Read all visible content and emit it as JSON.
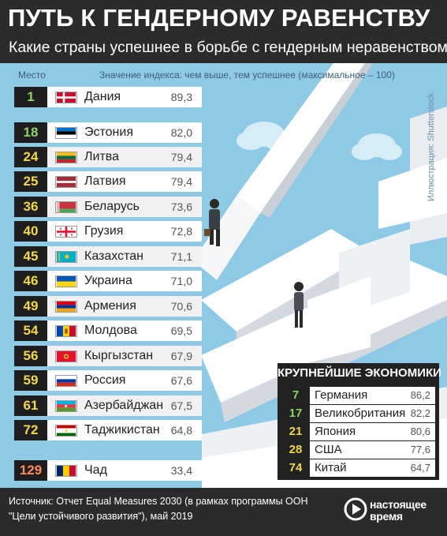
{
  "header": {
    "title": "ПУТЬ К ГЕНДЕРНОМУ РАВЕНСТВУ",
    "subtitle": "Какие страны успешнее в борьбе с гендерным неравенством"
  },
  "columns": {
    "rank_label": "Место",
    "value_label": "Значение индекса: чем выше, тем успешнее (максимальное – 100)"
  },
  "credit": "Иллюстрация: Shutterstock",
  "chart_data": {
    "type": "table",
    "rows": [
      {
        "rank": "1",
        "country": "Дания",
        "value": "89,3",
        "flag": "denmark"
      },
      {
        "rank": "18",
        "country": "Эстония",
        "value": "82,0",
        "flag": "estonia"
      },
      {
        "rank": "24",
        "country": "Литва",
        "value": "79,4",
        "flag": "lithuania"
      },
      {
        "rank": "25",
        "country": "Латвия",
        "value": "79,4",
        "flag": "latvia"
      },
      {
        "rank": "36",
        "country": "Беларусь",
        "value": "73,6",
        "flag": "belarus"
      },
      {
        "rank": "40",
        "country": "Грузия",
        "value": "72,8",
        "flag": "georgia"
      },
      {
        "rank": "45",
        "country": "Казахстан",
        "value": "71,1",
        "flag": "kazakhstan"
      },
      {
        "rank": "46",
        "country": "Украина",
        "value": "71,0",
        "flag": "ukraine"
      },
      {
        "rank": "49",
        "country": "Армения",
        "value": "70,6",
        "flag": "armenia"
      },
      {
        "rank": "54",
        "country": "Молдова",
        "value": "69,5",
        "flag": "moldova"
      },
      {
        "rank": "56",
        "country": "Кыргызстан",
        "value": "67,9",
        "flag": "kyrgyzstan"
      },
      {
        "rank": "59",
        "country": "Россия",
        "value": "67,6",
        "flag": "russia"
      },
      {
        "rank": "61",
        "country": "Азербайджан",
        "value": "67,5",
        "flag": "azerbaijan"
      },
      {
        "rank": "72",
        "country": "Таджикистан",
        "value": "64,8",
        "flag": "tajikistan"
      },
      {
        "rank": "129",
        "country": "Чад",
        "value": "33,4",
        "flag": "chad"
      }
    ],
    "economies": {
      "title": "КРУПНЕЙШИЕ ЭКОНОМИКИ",
      "rows": [
        {
          "rank": "7",
          "country": "Германия",
          "value": "86,2"
        },
        {
          "rank": "17",
          "country": "Великобритания",
          "value": "82,2"
        },
        {
          "rank": "21",
          "country": "Япония",
          "value": "80,6"
        },
        {
          "rank": "28",
          "country": "США",
          "value": "77,6"
        },
        {
          "rank": "74",
          "country": "Китай",
          "value": "64,7"
        }
      ]
    }
  },
  "footer": {
    "source": "Источник: Отчет Equal Measures 2030 (в рамках программы ООН \"Цели устойчивого развития\"), май 2019",
    "logo_line1": "настоящее",
    "logo_line2": "время"
  },
  "colors": {
    "sky": "#8ec9e6",
    "dark": "#2b2b2b",
    "rank_top": "#8fd26a",
    "rank_mid": "#f2d64b",
    "rank_low": "#ff8c5a"
  }
}
